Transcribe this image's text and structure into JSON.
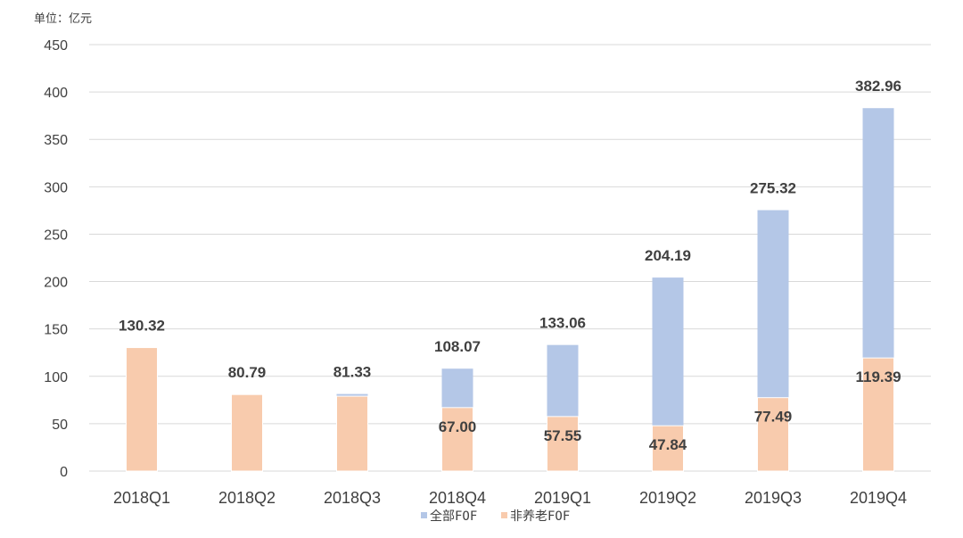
{
  "unit_label": "单位：亿元",
  "colors": {
    "total": "#b4c7e7",
    "non_pension": "#f8cbad",
    "grid": "#d9d9d9",
    "text": "#404040"
  },
  "chart_data": {
    "type": "bar",
    "title": "",
    "xlabel": "",
    "ylabel": "",
    "ylim": [
      0,
      450
    ],
    "yticks": [
      0,
      50,
      100,
      150,
      200,
      250,
      300,
      350,
      400,
      450
    ],
    "grid": true,
    "legend_position": "bottom",
    "categories": [
      "2018Q1",
      "2018Q2",
      "2018Q3",
      "2018Q4",
      "2019Q1",
      "2019Q2",
      "2019Q3",
      "2019Q4"
    ],
    "series": [
      {
        "name": "全部FOF",
        "values": [
          130.32,
          80.79,
          81.33,
          108.07,
          133.06,
          204.19,
          275.32,
          382.96
        ],
        "labels": [
          "130.32",
          "80.79",
          "81.33",
          "108.07",
          "133.06",
          "204.19",
          "275.32",
          "382.96"
        ]
      },
      {
        "name": "非养老FOF",
        "values": [
          130.32,
          80.79,
          79.0,
          67.0,
          57.55,
          47.84,
          77.49,
          119.39
        ],
        "labels": [
          "",
          "",
          "",
          "67.00",
          "57.55",
          "47.84",
          "77.49",
          "119.39"
        ]
      }
    ]
  }
}
